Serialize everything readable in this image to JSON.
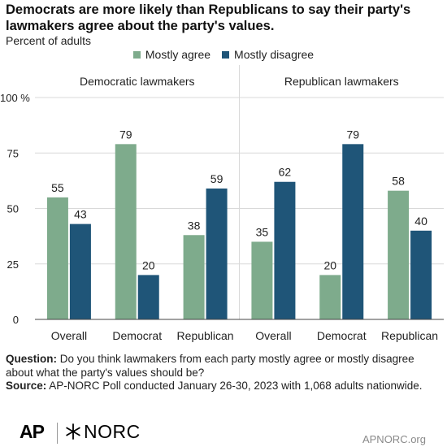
{
  "header": {
    "title": "Democrats are more likely than Republicans to say their party's lawmakers agree about the party's values.",
    "subtitle": "Percent of adults"
  },
  "colors": {
    "agree": "#7eab8c",
    "disagree": "#1f5578",
    "grid": "#d9d9d9",
    "axis": "#444444",
    "text": "#222222"
  },
  "chart_data": {
    "type": "bar",
    "legend": [
      "Mostly agree",
      "Mostly disagree"
    ],
    "legend_position": "top-center",
    "y_ticks": [
      "0",
      "25",
      "50",
      "75",
      "100 %"
    ],
    "ylim": [
      0,
      100
    ],
    "grid": true,
    "panels": [
      {
        "title": "Democratic lawmakers",
        "categories": [
          "Overall",
          "Democrat",
          "Republican"
        ],
        "series": [
          {
            "name": "Mostly agree",
            "values": [
              55,
              79,
              38
            ]
          },
          {
            "name": "Mostly disagree",
            "values": [
              43,
              20,
              59
            ]
          }
        ]
      },
      {
        "title": "Republican lawmakers",
        "categories": [
          "Overall",
          "Democrat",
          "Republican"
        ],
        "series": [
          {
            "name": "Mostly agree",
            "values": [
              35,
              20,
              58
            ]
          },
          {
            "name": "Mostly disagree",
            "values": [
              62,
              79,
              40
            ]
          }
        ]
      }
    ]
  },
  "footnote": {
    "question_label": "Question:",
    "question_text": "Do you think lawmakers from each party mostly agree or mostly disagree about what the party's values should be?",
    "source_label": "Source:",
    "source_text": "AP-NORC Poll conducted January 26-30, 2023 with 1,068 adults nationwide."
  },
  "branding": {
    "ap_logo": "AP",
    "norc_logo": "NORC",
    "norc_icon": "star-burst-icon",
    "site": "APNORC.org"
  }
}
